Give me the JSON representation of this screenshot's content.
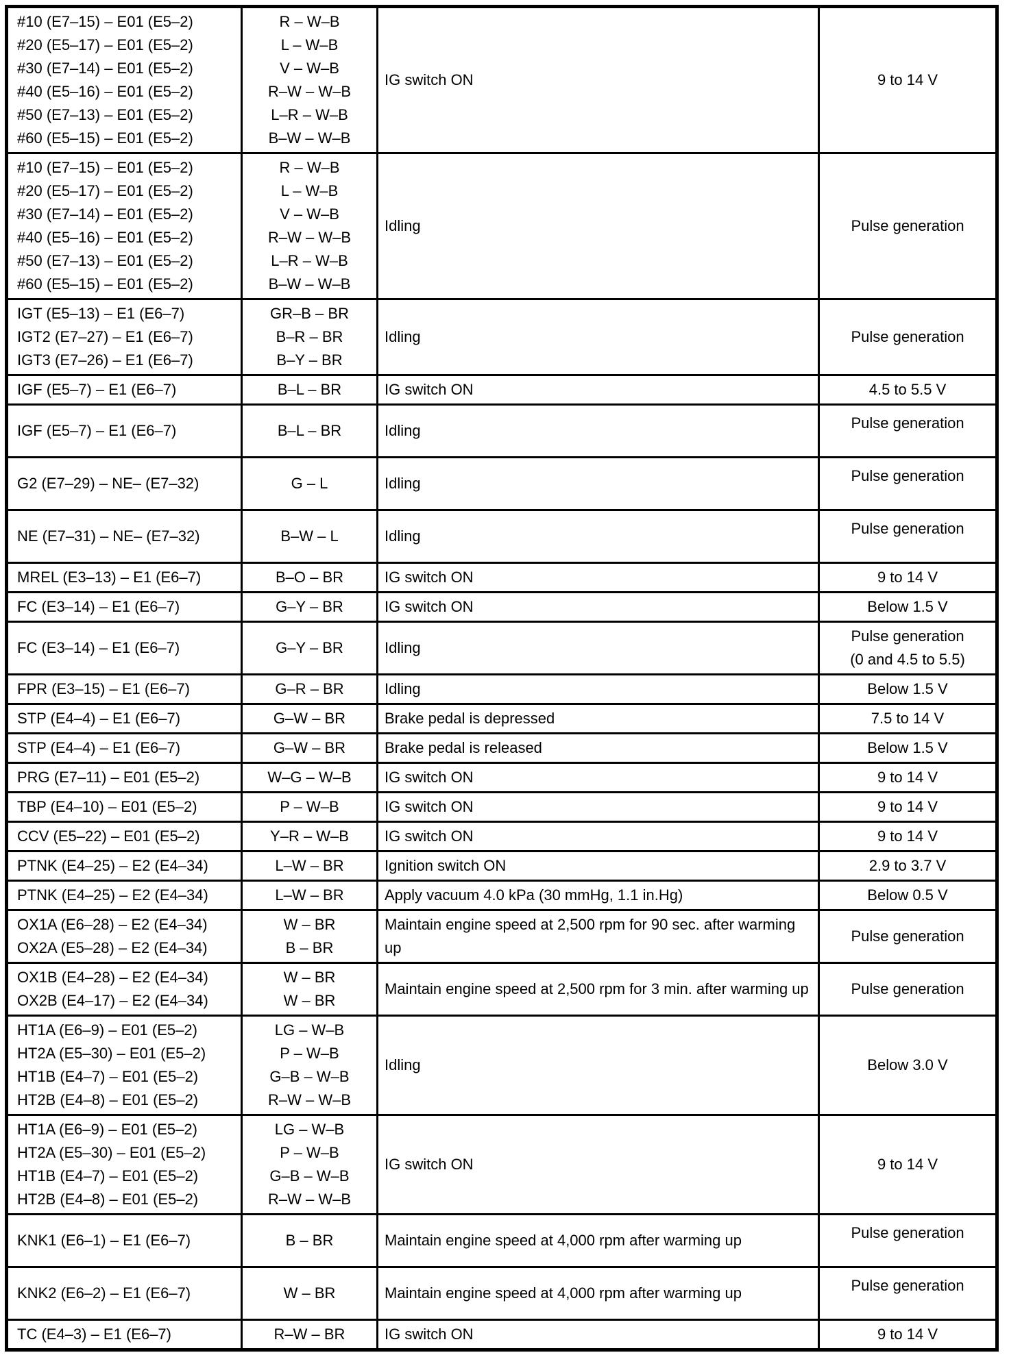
{
  "document": {
    "type": "ecm-terminal-voltage-table",
    "text_color": "#000000",
    "border_color": "#000000",
    "background_color": "#ffffff"
  },
  "table": {
    "columns": [
      "terminals",
      "wire_colors",
      "condition",
      "value"
    ],
    "rows": [
      {
        "terminals": [
          "#10 (E7–15) – E01 (E5–2)",
          "#20 (E5–17) – E01 (E5–2)",
          "#30 (E7–14) – E01 (E5–2)",
          "#40 (E5–16) – E01 (E5–2)",
          "#50 (E7–13) – E01 (E5–2)",
          "#60 (E5–15) – E01 (E5–2)"
        ],
        "wire_colors": [
          "R – W–B",
          "L – W–B",
          "V – W–B",
          "R–W – W–B",
          "L–R – W–B",
          "B–W – W–B"
        ],
        "condition": "IG switch ON",
        "value": [
          "9 to 14 V"
        ],
        "value_top": false
      },
      {
        "terminals": [
          "#10 (E7–15) – E01 (E5–2)",
          "#20 (E5–17) – E01 (E5–2)",
          "#30 (E7–14) – E01 (E5–2)",
          "#40 (E5–16) – E01 (E5–2)",
          "#50 (E7–13) – E01 (E5–2)",
          "#60 (E5–15) – E01 (E5–2)"
        ],
        "wire_colors": [
          "R – W–B",
          "L – W–B",
          "V – W–B",
          "R–W – W–B",
          "L–R – W–B",
          "B–W – W–B"
        ],
        "condition": "Idling",
        "value": [
          "Pulse generation"
        ],
        "value_top": false
      },
      {
        "terminals": [
          "IGT (E5–13) – E1 (E6–7)",
          "IGT2 (E7–27) – E1 (E6–7)",
          "IGT3 (E7–26) – E1 (E6–7)"
        ],
        "wire_colors": [
          "GR–B – BR",
          "B–R – BR",
          "B–Y – BR"
        ],
        "condition": "Idling",
        "value": [
          "Pulse generation"
        ],
        "value_top": false
      },
      {
        "terminals": [
          "IGF (E5–7) – E1 (E6–7)"
        ],
        "wire_colors": [
          "B–L – BR"
        ],
        "condition": "IG switch ON",
        "value": [
          "4.5 to 5.5 V"
        ],
        "value_top": false
      },
      {
        "terminals": [
          "IGF (E5–7) – E1 (E6–7)"
        ],
        "wire_colors": [
          "B–L – BR"
        ],
        "condition": "Idling",
        "value": [
          "Pulse generation"
        ],
        "value_top": true
      },
      {
        "terminals": [
          "G2 (E7–29) – NE– (E7–32)"
        ],
        "wire_colors": [
          "G – L"
        ],
        "condition": "Idling",
        "value": [
          "Pulse generation"
        ],
        "value_top": true
      },
      {
        "terminals": [
          "NE (E7–31) – NE– (E7–32)"
        ],
        "wire_colors": [
          "B–W – L"
        ],
        "condition": "Idling",
        "value": [
          "Pulse generation"
        ],
        "value_top": true
      },
      {
        "terminals": [
          "MREL (E3–13) – E1 (E6–7)"
        ],
        "wire_colors": [
          "B–O – BR"
        ],
        "condition": "IG switch ON",
        "value": [
          "9 to 14 V"
        ],
        "value_top": false
      },
      {
        "terminals": [
          "FC (E3–14) – E1 (E6–7)"
        ],
        "wire_colors": [
          "G–Y – BR"
        ],
        "condition": "IG switch ON",
        "value": [
          "Below 1.5 V"
        ],
        "value_top": false
      },
      {
        "terminals": [
          "FC (E3–14) – E1 (E6–7)"
        ],
        "wire_colors": [
          "G–Y – BR"
        ],
        "condition": "Idling",
        "value": [
          "Pulse generation",
          "(0 and 4.5 to 5.5)"
        ],
        "value_top": false
      },
      {
        "terminals": [
          "FPR (E3–15) – E1 (E6–7)"
        ],
        "wire_colors": [
          "G–R – BR"
        ],
        "condition": "Idling",
        "value": [
          "Below 1.5 V"
        ],
        "value_top": false
      },
      {
        "terminals": [
          "STP (E4–4) – E1 (E6–7)"
        ],
        "wire_colors": [
          "G–W – BR"
        ],
        "condition": "Brake pedal is depressed",
        "value": [
          "7.5 to 14 V"
        ],
        "value_top": false
      },
      {
        "terminals": [
          "STP (E4–4) – E1 (E6–7)"
        ],
        "wire_colors": [
          "G–W – BR"
        ],
        "condition": "Brake pedal is released",
        "value": [
          "Below 1.5 V"
        ],
        "value_top": false
      },
      {
        "terminals": [
          "PRG (E7–11) – E01 (E5–2)"
        ],
        "wire_colors": [
          "W–G – W–B"
        ],
        "condition": "IG switch ON",
        "value": [
          "9 to 14 V"
        ],
        "value_top": false
      },
      {
        "terminals": [
          "TBP (E4–10) – E01 (E5–2)"
        ],
        "wire_colors": [
          "P – W–B"
        ],
        "condition": "IG switch ON",
        "value": [
          "9 to 14 V"
        ],
        "value_top": false
      },
      {
        "terminals": [
          "CCV (E5–22) – E01 (E5–2)"
        ],
        "wire_colors": [
          "Y–R – W–B"
        ],
        "condition": "IG switch ON",
        "value": [
          "9 to 14 V"
        ],
        "value_top": false
      },
      {
        "terminals": [
          "PTNK (E4–25) – E2 (E4–34)"
        ],
        "wire_colors": [
          "L–W – BR"
        ],
        "condition": "Ignition switch ON",
        "value": [
          "2.9 to 3.7 V"
        ],
        "value_top": false
      },
      {
        "terminals": [
          "PTNK (E4–25) – E2 (E4–34)"
        ],
        "wire_colors": [
          "L–W – BR"
        ],
        "condition": "Apply vacuum 4.0 kPa (30 mmHg, 1.1 in.Hg)",
        "value": [
          "Below 0.5 V"
        ],
        "value_top": false
      },
      {
        "terminals": [
          "OX1A (E6–28) – E2 (E4–34)",
          "OX2A (E5–28) – E2 (E4–34)"
        ],
        "wire_colors": [
          "W – BR",
          "B – BR"
        ],
        "condition": "Maintain engine speed at 2,500 rpm for 90 sec. after warming up",
        "value": [
          "Pulse generation"
        ],
        "value_top": false
      },
      {
        "terminals": [
          "OX1B (E4–28) – E2 (E4–34)",
          "OX2B (E4–17) – E2 (E4–34)"
        ],
        "wire_colors": [
          "W – BR",
          "W – BR"
        ],
        "condition": "Maintain engine speed at 2,500 rpm for 3 min. after warming up",
        "value": [
          "Pulse generation"
        ],
        "value_top": false
      },
      {
        "terminals": [
          "HT1A (E6–9) – E01 (E5–2)",
          "HT2A (E5–30) – E01 (E5–2)",
          "HT1B (E4–7) – E01 (E5–2)",
          "HT2B (E4–8) – E01 (E5–2)"
        ],
        "wire_colors": [
          "LG – W–B",
          "P – W–B",
          "G–B – W–B",
          "R–W – W–B"
        ],
        "condition": "Idling",
        "value": [
          "Below 3.0 V"
        ],
        "value_top": false
      },
      {
        "terminals": [
          "HT1A (E6–9) – E01 (E5–2)",
          "HT2A (E5–30) – E01 (E5–2)",
          "HT1B (E4–7) – E01 (E5–2)",
          "HT2B (E4–8) – E01 (E5–2)"
        ],
        "wire_colors": [
          "LG – W–B",
          "P – W–B",
          "G–B – W–B",
          "R–W – W–B"
        ],
        "condition": "IG switch ON",
        "value": [
          "9 to 14 V"
        ],
        "value_top": false
      },
      {
        "terminals": [
          "KNK1 (E6–1) – E1 (E6–7)"
        ],
        "wire_colors": [
          "B – BR"
        ],
        "condition": "Maintain engine speed at 4,000 rpm after warming up",
        "value": [
          "Pulse generation"
        ],
        "value_top": true
      },
      {
        "terminals": [
          "KNK2 (E6–2) – E1 (E6–7)"
        ],
        "wire_colors": [
          "W – BR"
        ],
        "condition": "Maintain engine speed at 4,000 rpm after warming up",
        "value": [
          "Pulse generation"
        ],
        "value_top": true
      },
      {
        "terminals": [
          "TC (E4–3) – E1 (E6–7)"
        ],
        "wire_colors": [
          "R–W – BR"
        ],
        "condition": "IG switch ON",
        "value": [
          "9 to 14 V"
        ],
        "value_top": false
      }
    ]
  }
}
